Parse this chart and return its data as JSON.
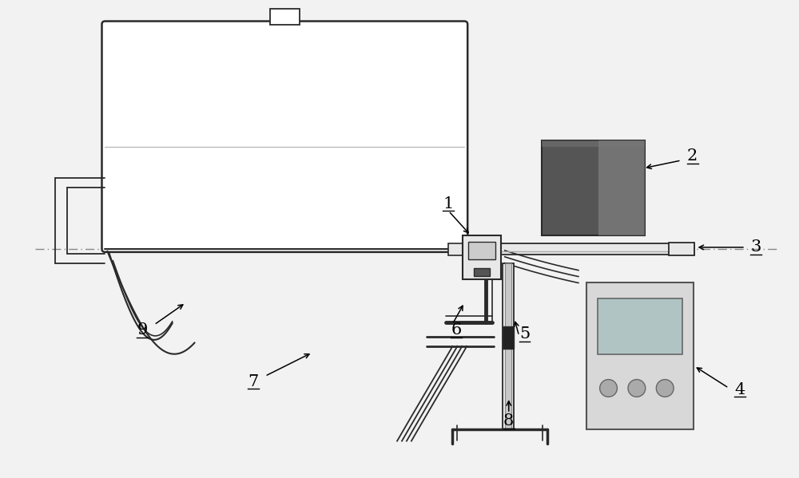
{
  "bg_color": "#f2f2f2",
  "line_color": "#2a2a2a",
  "dark_gray": "#4a4a4a",
  "mid_gray": "#888888",
  "light_gray": "#cccccc",
  "very_light_gray": "#e8e8e8",
  "label_color": "#000000",
  "label_fontsize": 15,
  "fig_w": 10.0,
  "fig_h": 5.99,
  "dpi": 100
}
